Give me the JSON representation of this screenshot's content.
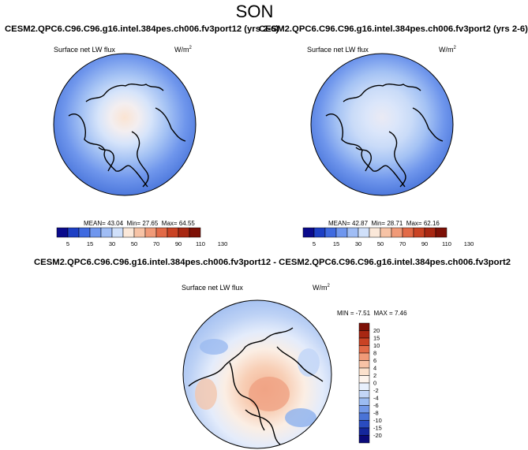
{
  "header": {
    "season": "SON"
  },
  "panels": [
    {
      "title": "CESM2.QPC6.C96.C96.g16.intel.384pes.ch006.fv3port12 (yrs 2-6)",
      "variable": "Surface net LW flux",
      "units_base": "W/m",
      "units_exp": "2",
      "stats": {
        "mean_label": "MEAN=",
        "mean": "43.04",
        "min_label": "Min=",
        "min": "27.65",
        "max_label": "Max=",
        "max": "64.55"
      }
    },
    {
      "title": "CESM2.QPC6.C96.C96.g16.intel.384pes.ch006.fv3port2 (yrs 2-6)",
      "variable": "Surface net LW flux",
      "units_base": "W/m",
      "units_exp": "2",
      "stats": {
        "mean_label": "MEAN=",
        "mean": "42.87",
        "min_label": "Min=",
        "min": "28.71",
        "max_label": "Max=",
        "max": "62.16"
      }
    },
    {
      "title": "CESM2.QPC6.C96.C96.g16.intel.384pes.ch006.fv3port12 - CESM2.QPC6.C96.C96.g16.intel.384pes.ch006.fv3port2",
      "variable": "Surface net LW flux",
      "units_base": "W/m",
      "units_exp": "2",
      "stats": {
        "min_label": "MIN =",
        "min": "-7.51",
        "max_label": "MAX =",
        "max": "7.46"
      }
    }
  ],
  "chart_data": [
    {
      "type": "heatmap",
      "projection": "north polar stereographic",
      "colorbar_orientation": "horizontal",
      "colorbar_levels": [
        "5",
        "15",
        "30",
        "50",
        "70",
        "90",
        "110",
        "130"
      ],
      "colorbar_colors": [
        "#0a0a8c",
        "#1d3fc4",
        "#3f6ae0",
        "#6f96ee",
        "#a0bdf5",
        "#d0e0fa",
        "#fbe8d9",
        "#f7c3a6",
        "#f09a78",
        "#e26a47",
        "#c94324",
        "#a82712",
        "#7d1006"
      ]
    },
    {
      "type": "heatmap",
      "projection": "north polar stereographic",
      "colorbar_orientation": "horizontal",
      "colorbar_levels": [
        "5",
        "15",
        "30",
        "50",
        "70",
        "90",
        "110",
        "130"
      ],
      "colorbar_colors": [
        "#0a0a8c",
        "#1d3fc4",
        "#3f6ae0",
        "#6f96ee",
        "#a0bdf5",
        "#d0e0fa",
        "#fbe8d9",
        "#f7c3a6",
        "#f09a78",
        "#e26a47",
        "#c94324",
        "#a82712",
        "#7d1006"
      ]
    },
    {
      "type": "heatmap",
      "projection": "north polar stereographic",
      "colorbar_orientation": "vertical",
      "colorbar_levels": [
        "20",
        "15",
        "10",
        "8",
        "6",
        "4",
        "2",
        "0",
        "-2",
        "-4",
        "-6",
        "-8",
        "-10",
        "-15",
        "-20"
      ],
      "colorbar_colors": [
        "#7d1006",
        "#a82712",
        "#c94324",
        "#e26a47",
        "#f09a78",
        "#f7c3a6",
        "#fbe1cc",
        "#fdf4ec",
        "#e8f0fc",
        "#c3d6f7",
        "#9cbcf2",
        "#7298e8",
        "#4a73d6",
        "#2a4cc0",
        "#14279c",
        "#0a0a7a"
      ]
    }
  ]
}
